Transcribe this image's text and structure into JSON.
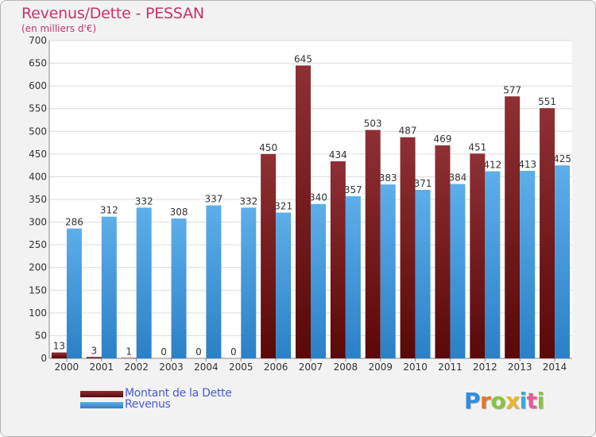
{
  "title": "Revenus/Dette - PESSAN",
  "subtitle": "(en milliers d'€)",
  "brand": [
    "P",
    "r",
    "o",
    "x",
    "i",
    "t",
    "i"
  ],
  "colors": {
    "debt_top": "#8e3034",
    "debt_bottom": "#5a0808",
    "revenue_top": "#5daeea",
    "revenue_bottom": "#2b80c6",
    "title": "#c8326e",
    "legend_text": "#4a5cd6"
  },
  "chart_data": {
    "type": "bar",
    "categories": [
      "2000",
      "2001",
      "2002",
      "2003",
      "2004",
      "2005",
      "2006",
      "2007",
      "2008",
      "2009",
      "2010",
      "2011",
      "2012",
      "2013",
      "2014"
    ],
    "series": [
      {
        "name": "Montant de la Dette",
        "values": [
          13,
          3,
          1,
          0,
          0,
          0,
          450,
          645,
          434,
          503,
          487,
          469,
          451,
          577,
          551
        ]
      },
      {
        "name": "Revenus",
        "values": [
          286,
          312,
          332,
          308,
          337,
          332,
          321,
          340,
          357,
          383,
          371,
          384,
          412,
          413,
          425
        ]
      }
    ],
    "ylim": [
      0,
      700
    ],
    "yticks": [
      "0",
      "50",
      "100",
      "150",
      "200",
      "250",
      "300",
      "350",
      "400",
      "450",
      "500",
      "550",
      "600",
      "650",
      "700"
    ],
    "grid": true,
    "legend": "bottom-left"
  }
}
